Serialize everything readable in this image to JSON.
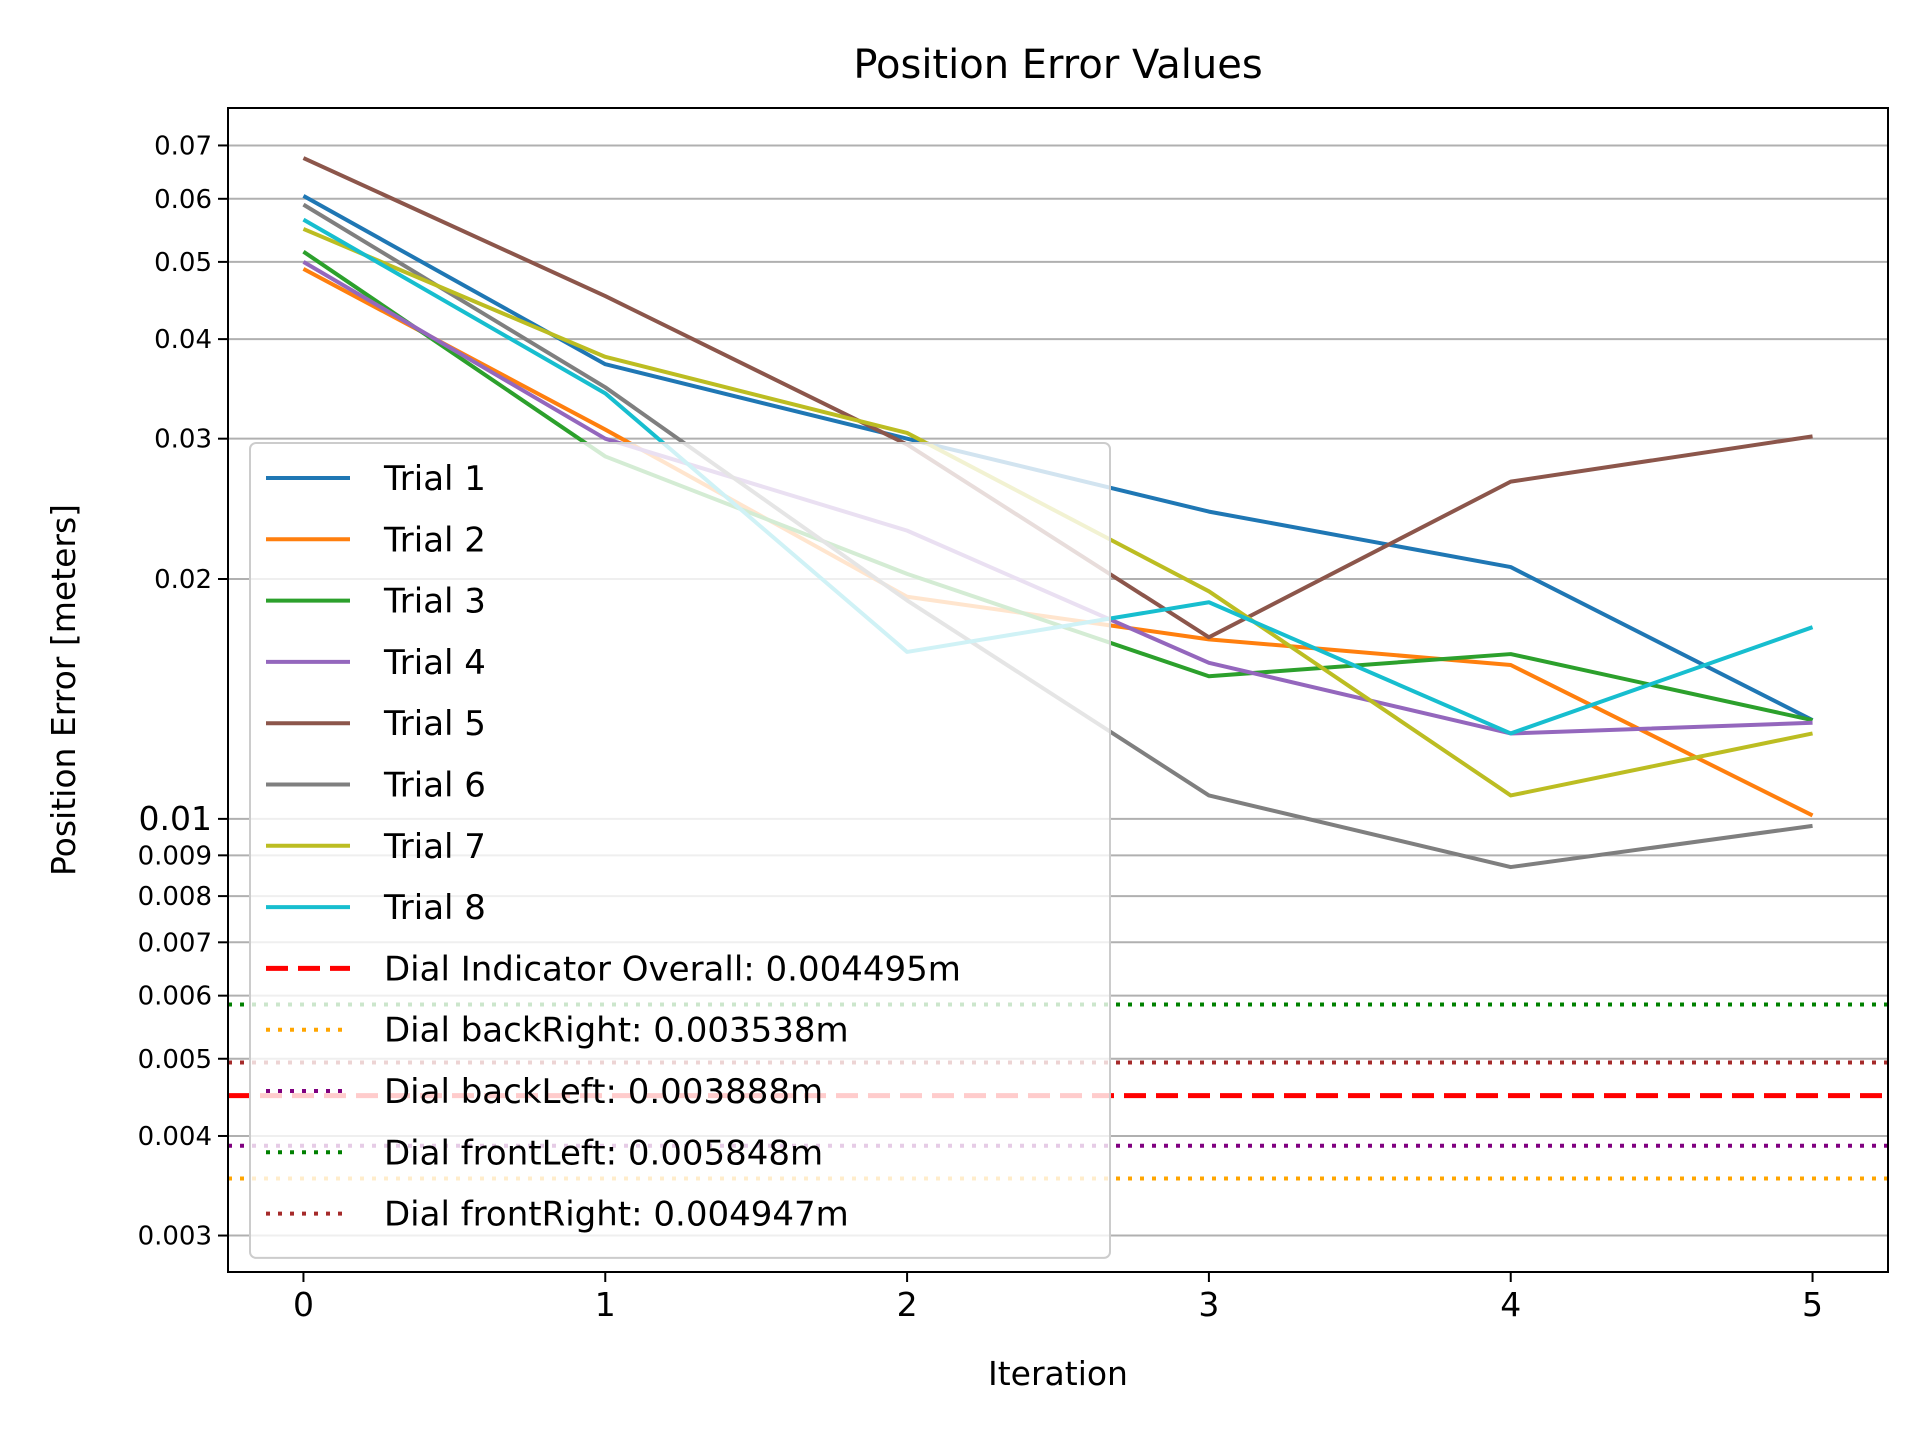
{
  "chart_data": {
    "type": "line",
    "title": "Position Error Values",
    "xlabel": "Iteration",
    "ylabel": "Position Error [meters]",
    "yscale": "log",
    "xlim": [
      -0.25,
      5.25
    ],
    "ylim": [
      0.0027,
      0.078
    ],
    "grid": "horizontal",
    "legend_position": "lower-left",
    "x": [
      0,
      1,
      2,
      3,
      4,
      5
    ],
    "x_ticks": [
      "0",
      "1",
      "2",
      "3",
      "4",
      "5"
    ],
    "y_ticks": [
      {
        "value": 0.003,
        "label": "0.003"
      },
      {
        "value": 0.004,
        "label": "0.004"
      },
      {
        "value": 0.005,
        "label": "0.005"
      },
      {
        "value": 0.006,
        "label": "0.006"
      },
      {
        "value": 0.007,
        "label": "0.007"
      },
      {
        "value": 0.008,
        "label": "0.008"
      },
      {
        "value": 0.009,
        "label": "0.009"
      },
      {
        "value": 0.01,
        "label": "0.01",
        "major": true
      },
      {
        "value": 0.02,
        "label": "0.02"
      },
      {
        "value": 0.03,
        "label": "0.03"
      },
      {
        "value": 0.04,
        "label": "0.04"
      },
      {
        "value": 0.05,
        "label": "0.05"
      },
      {
        "value": 0.06,
        "label": "0.06"
      },
      {
        "value": 0.07,
        "label": "0.07"
      }
    ],
    "series": [
      {
        "name": "Trial 1",
        "color": "#1f77b4",
        "values": [
          0.0605,
          0.0372,
          0.03,
          0.0243,
          0.0207,
          0.0133
        ]
      },
      {
        "name": "Trial 2",
        "color": "#ff7f0e",
        "values": [
          0.049,
          0.0308,
          0.019,
          0.0168,
          0.0156,
          0.0101
        ]
      },
      {
        "name": "Trial 3",
        "color": "#2ca02c",
        "values": [
          0.0515,
          0.0285,
          0.0203,
          0.0151,
          0.0161,
          0.0133
        ]
      },
      {
        "name": "Trial 4",
        "color": "#9467bd",
        "values": [
          0.05,
          0.03,
          0.023,
          0.0157,
          0.0128,
          0.0132
        ]
      },
      {
        "name": "Trial 5",
        "color": "#8c564b",
        "values": [
          0.0675,
          0.0453,
          0.0295,
          0.0169,
          0.0265,
          0.0302
        ]
      },
      {
        "name": "Trial 6",
        "color": "#7f7f7f",
        "values": [
          0.059,
          0.0348,
          0.0188,
          0.0107,
          0.0087,
          0.0098
        ]
      },
      {
        "name": "Trial 7",
        "color": "#bcbd22",
        "values": [
          0.055,
          0.038,
          0.0305,
          0.0193,
          0.0107,
          0.0128
        ]
      },
      {
        "name": "Trial 8",
        "color": "#17becf",
        "values": [
          0.0565,
          0.0342,
          0.0162,
          0.0187,
          0.0128,
          0.0174
        ]
      }
    ],
    "reference_lines": [
      {
        "name": "Dial Indicator Overall: 0.004495m",
        "value": 0.004495,
        "color": "#ff0000",
        "style": "dashed"
      },
      {
        "name": "Dial backRight: 0.003538m",
        "value": 0.003538,
        "color": "#ffa500",
        "style": "dotted"
      },
      {
        "name": "Dial backLeft: 0.003888m",
        "value": 0.003888,
        "color": "#800080",
        "style": "dotted"
      },
      {
        "name": "Dial frontLeft: 0.005848m",
        "value": 0.005848,
        "color": "#008000",
        "style": "dotted"
      },
      {
        "name": "Dial frontRight: 0.004947m",
        "value": 0.004947,
        "color": "#a52a2a",
        "style": "dotted"
      }
    ]
  }
}
